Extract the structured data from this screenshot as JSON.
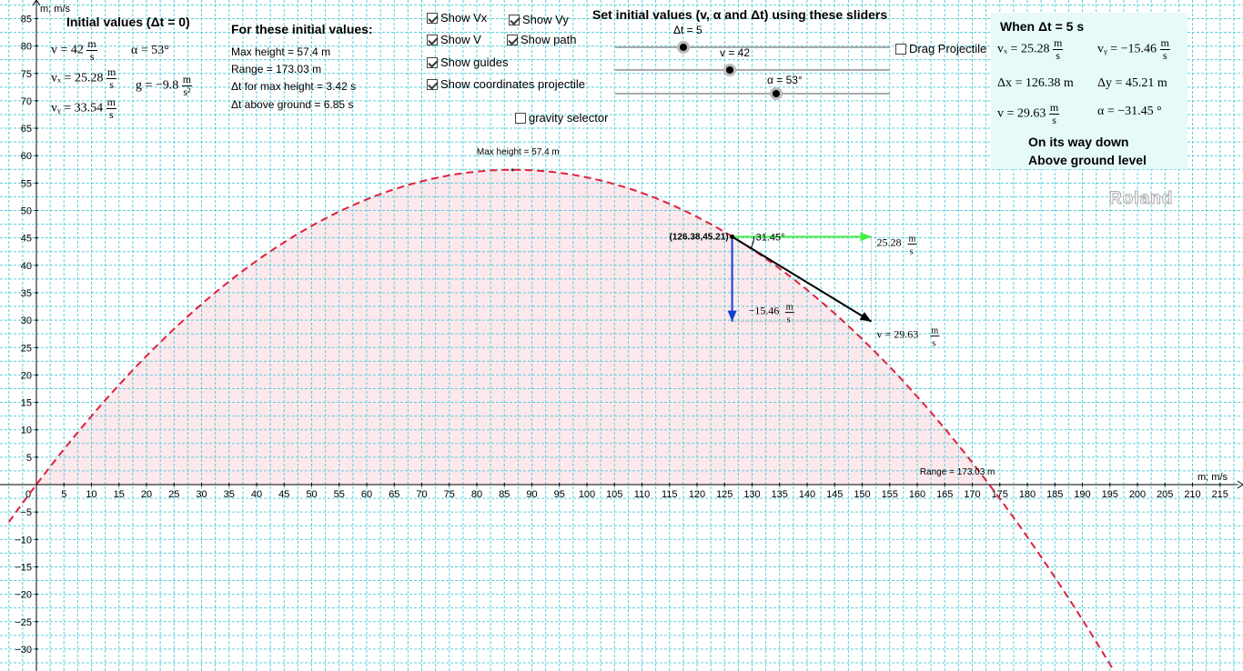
{
  "axes": {
    "y_label": "m; m/s",
    "x_label": "m; m/s",
    "x_range": [
      -5,
      218
    ],
    "y_range": [
      -33,
      88
    ],
    "x_ticks": [
      5,
      10,
      15,
      20,
      25,
      30,
      35,
      40,
      45,
      50,
      55,
      60,
      65,
      70,
      75,
      80,
      85,
      90,
      95,
      100,
      105,
      110,
      115,
      120,
      125,
      130,
      135,
      140,
      145,
      150,
      155,
      160,
      165,
      170,
      175,
      180,
      185,
      190,
      195,
      200,
      205,
      210,
      215
    ],
    "y_ticks": [
      -30,
      -25,
      -20,
      -15,
      -10,
      -5,
      5,
      10,
      15,
      20,
      25,
      30,
      35,
      40,
      45,
      50,
      55,
      60,
      65,
      70,
      75,
      80,
      85
    ],
    "origin_label": "0",
    "grid": true
  },
  "initial": {
    "title": "Initial values (Δt = 0)",
    "v": "v = 42",
    "alpha": "α = 53°",
    "vx": "vₓ = 25.28",
    "g": "g = −9.8",
    "vy": "vᵧ = 33.54",
    "unit_m": "m",
    "unit_s": "s",
    "unit_s2": "s²"
  },
  "for_initial": {
    "title": "For these initial values:",
    "max_height": "Max height = 57.4 m",
    "range": "Range = 173.03 m",
    "dt_max": "Δt for max height = 3.42 s",
    "dt_ground": "Δt above ground = 6.85 s"
  },
  "checkboxes": {
    "show_vx": {
      "label": "Show Vx",
      "checked": true
    },
    "show_vy": {
      "label": "Show Vy",
      "checked": true
    },
    "show_v": {
      "label": "Show V",
      "checked": true
    },
    "show_path": {
      "label": "Show path",
      "checked": true
    },
    "show_guides": {
      "label": "Show guides",
      "checked": true
    },
    "show_coords": {
      "label": "Show coordinates projectile",
      "checked": true
    },
    "gravity": {
      "label": "gravity selector",
      "checked": false
    },
    "drag": {
      "label": "Drag Projectile",
      "checked": false
    }
  },
  "sliders": {
    "title": "Set initial values (v, α and Δt) using these sliders",
    "dt": {
      "label": "Δt = 5",
      "fraction": 0.28
    },
    "v": {
      "label": "v = 42",
      "fraction": 0.42
    },
    "alpha": {
      "label": "α = 53°",
      "fraction": 0.59
    }
  },
  "results": {
    "title": "When Δt = 5 s",
    "vx": "vₓ = 25.28",
    "vy": "vᵧ = −15.46",
    "dx": "Δx = 126.38 m",
    "dy": "Δy = 45.21 m",
    "v": "v = 29.63",
    "alpha": "α = −31.45 °",
    "status1": "On its way down",
    "status2": "Above ground level"
  },
  "plot_labels": {
    "max_height": "Max height = 57.4 m",
    "range": "Range = 173.03 m",
    "point": "(126.38,45.21)",
    "angle": "31.45°",
    "vx_value": "25.28",
    "vy_value": "−15.46",
    "v_value": "v = 29.63",
    "watermark": "Roland"
  },
  "chart_data": {
    "type": "scatter",
    "trajectory": {
      "v0": 42,
      "angle_deg": 53,
      "g": 9.8,
      "vx": 25.28,
      "vy0": 33.54
    },
    "projectile": {
      "x": 126.38,
      "y": 45.21,
      "t": 5
    },
    "vectors": {
      "vx": 25.28,
      "vy": -15.46,
      "v": 29.63,
      "angle_deg": -31.45
    },
    "max_height": {
      "x": 86.5,
      "y": 57.4
    },
    "range": 173.03
  },
  "colors": {
    "grid": "#5ad0dc",
    "path": "#e0203c",
    "fill": "#fde8ec",
    "vx": "#44ee44",
    "vy": "#1040d0",
    "v": "#000000",
    "panel": "#e6fafa"
  }
}
